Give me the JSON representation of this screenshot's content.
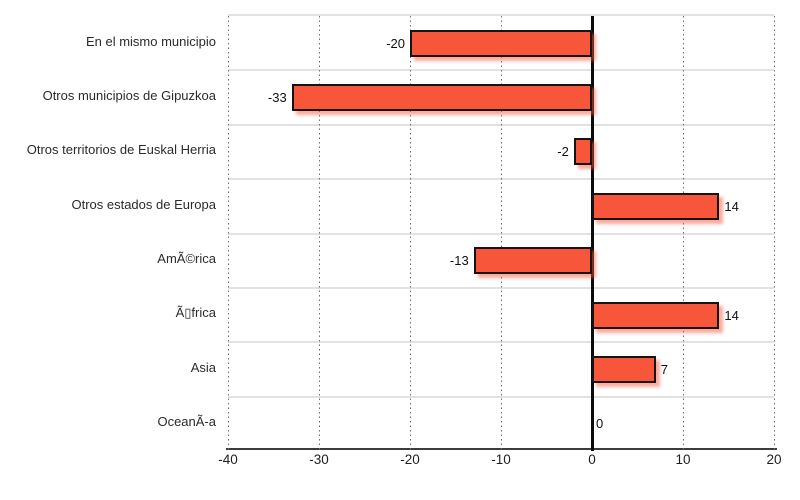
{
  "chart_data": {
    "type": "bar",
    "orientation": "horizontal",
    "title": "",
    "xlabel": "",
    "ylabel": "",
    "legend": "none",
    "grid": "vertical-dotted",
    "categories": [
      "En el mismo municipio",
      "Otros municipios de Gipuzkoa",
      "Otros territorios de Euskal Herria",
      "Otros estados de Europa",
      "AmÃ©rica",
      "Ã▯frica",
      "Asia",
      "OceanÃ-a"
    ],
    "values": [
      -20,
      -33,
      -2,
      14,
      -13,
      14,
      7,
      0
    ],
    "value_labels": [
      "-20",
      "-33",
      "-2",
      "14",
      "-13",
      "14",
      "7",
      "0"
    ],
    "xlim": [
      -40,
      20
    ],
    "x_tick_values": [
      -40,
      -30,
      -20,
      -10,
      0,
      10,
      20
    ],
    "x_tick_labels": [
      "-40",
      "-30",
      "-20",
      "-10",
      "0",
      "10",
      "20"
    ],
    "colors": {
      "bar_fill": "#F8563A",
      "bar_border": "#141414",
      "bar_shadow": "rgba(248,86,58,0.5)",
      "gridline": "#6F6F6F",
      "row_separator": "#E2E2E2",
      "axis_line": "#3C3C3C",
      "zero_line": "#0B0B0B",
      "label_text": "#2B2B2B"
    }
  }
}
